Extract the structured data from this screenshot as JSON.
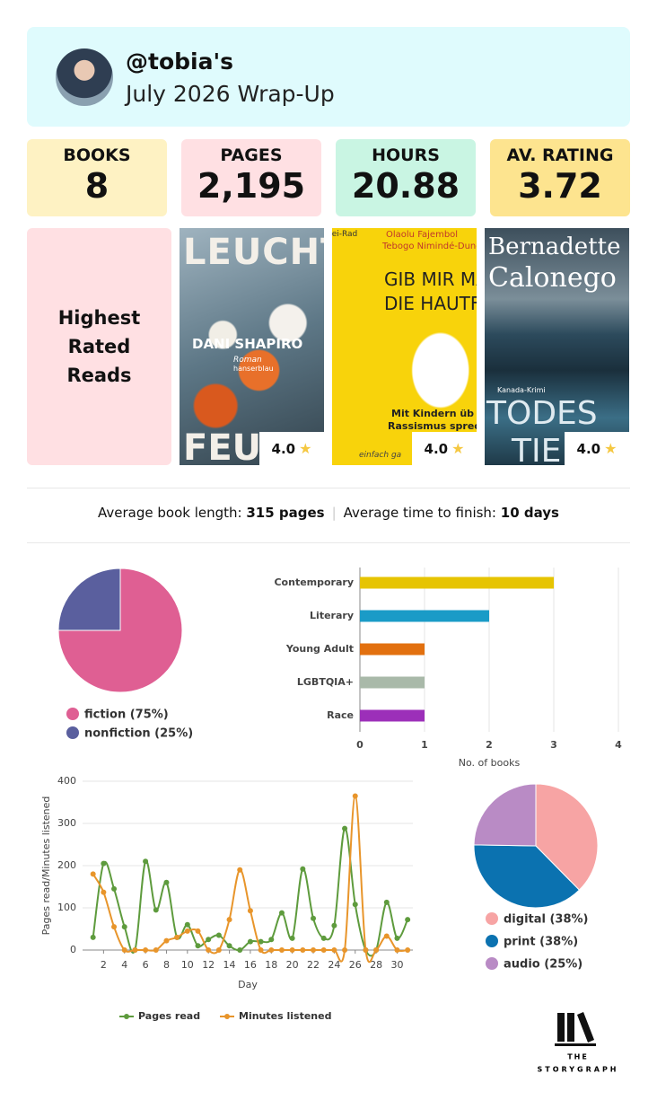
{
  "header": {
    "username": "@tobia's",
    "title": "July 2026 Wrap-Up"
  },
  "stats": [
    {
      "label": "BOOKS",
      "value": "8"
    },
    {
      "label": "PAGES",
      "value": "2,195"
    },
    {
      "label": "HOURS",
      "value": "20.88"
    },
    {
      "label": "AV. RATING",
      "value": "3.72"
    }
  ],
  "highest_rated": {
    "title": "Highest Rated Reads",
    "books": [
      {
        "cover_text": [
          "LEUCHT",
          "DANI SHAPIRO",
          "Roman",
          "hanserblau",
          "FEU"
        ],
        "rating": "4.0"
      },
      {
        "cover_text": [
          "nei-Rad",
          "Olaolu Fajembol",
          "Tebogo Nimindé-Dund",
          "GIB MIR MA",
          "DIE HAUTFAR",
          "Mit Kindern üb",
          "Rassismus sprec",
          "einfach ga"
        ],
        "rating": "4.0"
      },
      {
        "cover_text": [
          "Bernadette",
          "Calonego",
          "Kanada-Krimi",
          "TODES",
          "TIE"
        ],
        "rating": "4.0"
      }
    ]
  },
  "averages": [
    {
      "label": "Average book length:",
      "value": "315 pages"
    },
    {
      "label": "Average time to finish:",
      "value": "10 days"
    }
  ],
  "chart_data": [
    {
      "type": "pie",
      "labels": [
        "fiction (75%)",
        "nonfiction (25%)"
      ],
      "values": [
        75,
        25
      ],
      "colors": [
        "#df5f93",
        "#5a5f9e"
      ]
    },
    {
      "type": "bar",
      "horizontal": true,
      "categories": [
        "Contemporary",
        "Literary",
        "Young Adult",
        "LGBTQIA+",
        "Race"
      ],
      "values": [
        3,
        2,
        1,
        1,
        1
      ],
      "colors": [
        "#e6c402",
        "#1a9bc7",
        "#e2700f",
        "#a9b9a9",
        "#9c2fb9"
      ],
      "xlim": [
        0,
        4
      ],
      "xticks": [
        0,
        1,
        2,
        3,
        4
      ],
      "xlabel": "No. of books",
      "grid": true
    },
    {
      "type": "line",
      "ylabel": "Pages read/Minutes listened",
      "xlabel": "Day",
      "x": [
        1,
        2,
        3,
        4,
        5,
        6,
        7,
        8,
        9,
        10,
        11,
        12,
        13,
        14,
        15,
        16,
        17,
        18,
        19,
        20,
        21,
        22,
        23,
        24,
        25,
        26,
        27,
        28,
        29,
        30,
        31
      ],
      "xlim": [
        0,
        31.5
      ],
      "xticks": [
        2,
        4,
        6,
        8,
        10,
        12,
        14,
        16,
        18,
        20,
        22,
        24,
        26,
        28,
        30
      ],
      "ylim": [
        0,
        400
      ],
      "yticks": [
        0,
        100,
        200,
        300,
        400
      ],
      "grid": true,
      "series": [
        {
          "name": "Pages read",
          "color": "#5e9b3d",
          "values": [
            30,
            205,
            145,
            55,
            0,
            210,
            95,
            160,
            30,
            60,
            10,
            25,
            35,
            10,
            0,
            20,
            20,
            25,
            88,
            28,
            192,
            75,
            28,
            58,
            288,
            108,
            0,
            0,
            113,
            28,
            72
          ]
        },
        {
          "name": "Minutes listened",
          "color": "#e8952b",
          "values": [
            180,
            137,
            55,
            0,
            0,
            0,
            0,
            22,
            30,
            45,
            45,
            0,
            0,
            72,
            190,
            93,
            0,
            0,
            0,
            0,
            0,
            0,
            0,
            0,
            0,
            365,
            0,
            0,
            33,
            0,
            0
          ]
        }
      ]
    },
    {
      "type": "pie",
      "labels": [
        "digital (38%)",
        "print (38%)",
        "audio (25%)"
      ],
      "values": [
        38,
        38,
        25
      ],
      "colors": [
        "#f7a4a4",
        "#0b72b0",
        "#b98bc5"
      ]
    }
  ],
  "logo": {
    "line1": "THE",
    "line2": "STORYGRAPH"
  }
}
